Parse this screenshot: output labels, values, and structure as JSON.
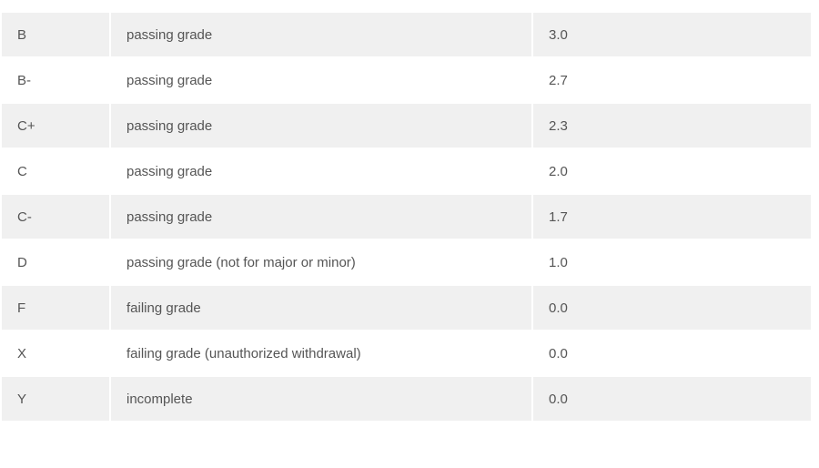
{
  "grades": [
    {
      "grade": "",
      "description": "",
      "points": ""
    },
    {
      "grade": "B",
      "description": "passing grade",
      "points": "3.0"
    },
    {
      "grade": "B-",
      "description": "passing grade",
      "points": "2.7"
    },
    {
      "grade": "C+",
      "description": "passing grade",
      "points": "2.3"
    },
    {
      "grade": "C",
      "description": "passing grade",
      "points": "2.0"
    },
    {
      "grade": "C-",
      "description": "passing grade",
      "points": "1.7"
    },
    {
      "grade": "D",
      "description": "passing grade (not for major or minor)",
      "points": "1.0"
    },
    {
      "grade": "F",
      "description": "failing grade",
      "points": "0.0"
    },
    {
      "grade": "X",
      "description": "failing grade (unauthorized withdrawal)",
      "points": "0.0"
    },
    {
      "grade": "Y",
      "description": "incomplete",
      "points": "0.0"
    },
    {
      "grade": "",
      "description": "",
      "points": ""
    }
  ]
}
